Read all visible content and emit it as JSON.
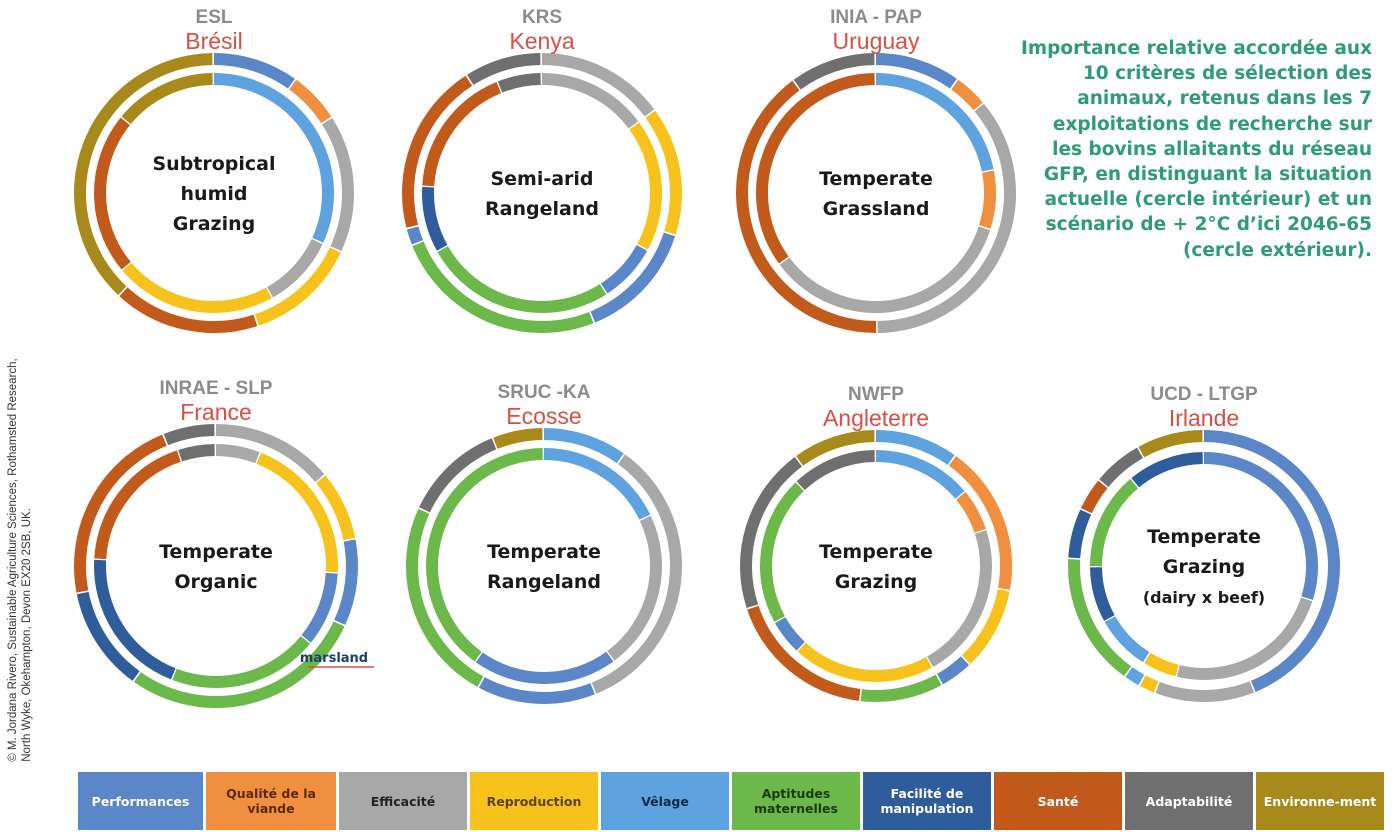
{
  "caption": "Importance relative accordée aux 10 critères de sélection des animaux, retenus dans les 7 exploitations de recherche sur les bovins allaitants du réseau GFP, en distinguant la situation actuelle (cercle intérieur) et un scénario de + 2°C d’ici 2046-65 (cercle extérieur).",
  "credit": {
    "line1": "© M. Jordana Rivero, Sustainable Agriculture Sciences, Rothamsted Research,",
    "line2": "North Wyke, Okehampton, Devon EX20 2SB, UK."
  },
  "colors": {
    "title_gray": "#8c8c8c",
    "country_red": "#d94f45",
    "caption_green": "#2e9b7a"
  },
  "legend": [
    {
      "key": "performances",
      "label": "Performances",
      "color": "#5b86c7",
      "text_color": "#ffffff",
      "width": 125
    },
    {
      "key": "qualite",
      "label": "Qualité de la viande",
      "color": "#ef8f3f",
      "text_color": "#5a2a06",
      "width": 130
    },
    {
      "key": "efficacite",
      "label": "Efficacité",
      "color": "#a8a8a8",
      "text_color": "#222222",
      "width": 128
    },
    {
      "key": "reproduction",
      "label": "Reproduction",
      "color": "#f7c21b",
      "text_color": "#5a4300",
      "width": 128
    },
    {
      "key": "velage",
      "label": "Vêlage",
      "color": "#5ea3e0",
      "text_color": "#0e2b47",
      "width": 128
    },
    {
      "key": "aptitudes",
      "label": "Aptitudes maternelles",
      "color": "#6cb84a",
      "text_color": "#1c3a0d",
      "width": 128
    },
    {
      "key": "facilite",
      "label": "Facilité de manipulation",
      "color": "#2f5d9c",
      "text_color": "#ffffff",
      "width": 128
    },
    {
      "key": "sante",
      "label": "Santé",
      "color": "#c25a1c",
      "text_color": "#ffffff",
      "width": 128
    },
    {
      "key": "adaptabilite",
      "label": "Adaptabilité",
      "color": "#6f6f6f",
      "text_color": "#ffffff",
      "width": 128
    },
    {
      "key": "environnement",
      "label": "Environne-ment",
      "color": "#a88a1c",
      "text_color": "#ffffff",
      "width": 128
    }
  ],
  "chart_data": [
    {
      "type": "donut",
      "org": "ESL",
      "country": "Brésil",
      "center_label": [
        "Subtropical",
        "humid",
        "Grazing"
      ],
      "outer": [
        [
          "performances",
          10
        ],
        [
          "qualite",
          6
        ],
        [
          "efficacite",
          16
        ],
        [
          "reproduction",
          13
        ],
        [
          "sante",
          17
        ],
        [
          "environnement",
          38
        ]
      ],
      "inner": [
        [
          "velage",
          32
        ],
        [
          "efficacite",
          10
        ],
        [
          "reproduction",
          22
        ],
        [
          "sante",
          22
        ],
        [
          "environnement",
          14
        ]
      ]
    },
    {
      "type": "donut",
      "org": "KRS",
      "country": "Kenya",
      "center_label": [
        "Semi-arid",
        "Rangeland"
      ],
      "outer": [
        [
          "efficacite",
          15
        ],
        [
          "reproduction",
          15
        ],
        [
          "performances",
          14
        ],
        [
          "aptitudes",
          25
        ],
        [
          "performances",
          2
        ],
        [
          "sante",
          20
        ],
        [
          "adaptabilite",
          9
        ]
      ],
      "inner": [
        [
          "efficacite",
          15
        ],
        [
          "reproduction",
          18
        ],
        [
          "performances",
          8
        ],
        [
          "aptitudes",
          26
        ],
        [
          "facilite",
          9
        ],
        [
          "sante",
          18
        ],
        [
          "adaptabilite",
          6
        ]
      ]
    },
    {
      "type": "donut",
      "org": "INIA - PAP",
      "country": "Uruguay",
      "center_label": [
        "Temperate",
        "Grassland"
      ],
      "outer": [
        [
          "performances",
          10
        ],
        [
          "qualite",
          4
        ],
        [
          "efficacite",
          36
        ],
        [
          "sante",
          40
        ],
        [
          "adaptabilite",
          10
        ]
      ],
      "inner": [
        [
          "velage",
          22
        ],
        [
          "qualite",
          8
        ],
        [
          "efficacite",
          35
        ],
        [
          "sante",
          35
        ]
      ]
    },
    {
      "type": "donut",
      "org": "INRAE - SLP",
      "country": "France",
      "center_label": [
        "Temperate",
        "Organic"
      ],
      "outer": [
        [
          "efficacite",
          14
        ],
        [
          "reproduction",
          8
        ],
        [
          "performances",
          10
        ],
        [
          "aptitudes",
          28
        ],
        [
          "facilite",
          12
        ],
        [
          "sante",
          22
        ],
        [
          "adaptabilite",
          6
        ]
      ],
      "inner": [
        [
          "efficacite",
          6
        ],
        [
          "reproduction",
          20
        ],
        [
          "performances",
          10
        ],
        [
          "aptitudes",
          20
        ],
        [
          "facilite",
          20
        ],
        [
          "sante",
          19
        ],
        [
          "adaptabilite",
          5
        ]
      ],
      "annotation": "marsland"
    },
    {
      "type": "donut",
      "org": "SRUC -KA",
      "country": "Ecosse",
      "center_label": [
        "Temperate",
        "Rangeland"
      ],
      "outer": [
        [
          "velage",
          10
        ],
        [
          "efficacite",
          34
        ],
        [
          "performances",
          14
        ],
        [
          "aptitudes",
          24
        ],
        [
          "adaptabilite",
          12
        ],
        [
          "environnement",
          6
        ]
      ],
      "inner": [
        [
          "velage",
          18
        ],
        [
          "efficacite",
          22
        ],
        [
          "performances",
          20
        ],
        [
          "aptitudes",
          40
        ]
      ]
    },
    {
      "type": "donut",
      "org": "NWFP",
      "country": "Angleterre",
      "center_label": [
        "Temperate",
        "Grazing"
      ],
      "outer": [
        [
          "velage",
          10
        ],
        [
          "qualite",
          18
        ],
        [
          "reproduction",
          10
        ],
        [
          "performances",
          4
        ],
        [
          "aptitudes",
          10
        ],
        [
          "sante",
          18
        ],
        [
          "adaptabilite",
          20
        ],
        [
          "environnement",
          10
        ]
      ],
      "inner": [
        [
          "velage",
          14
        ],
        [
          "qualite",
          6
        ],
        [
          "efficacite",
          22
        ],
        [
          "reproduction",
          20
        ],
        [
          "performances",
          5
        ],
        [
          "aptitudes",
          21
        ],
        [
          "adaptabilite",
          12
        ]
      ]
    },
    {
      "type": "donut",
      "org": "UCD - LTGP",
      "country": "Irlande",
      "center_label": [
        "Temperate",
        "Grazing",
        "(dairy x beef)"
      ],
      "outer": [
        [
          "performances",
          44
        ],
        [
          "efficacite",
          12
        ],
        [
          "reproduction",
          2
        ],
        [
          "velage",
          2
        ],
        [
          "aptitudes",
          16
        ],
        [
          "facilite",
          6
        ],
        [
          "sante",
          4
        ],
        [
          "adaptabilite",
          6
        ],
        [
          "environnement",
          8
        ]
      ],
      "inner": [
        [
          "performances",
          30
        ],
        [
          "efficacite",
          24
        ],
        [
          "reproduction",
          5
        ],
        [
          "velage",
          8
        ],
        [
          "facilite",
          8
        ],
        [
          "aptitudes",
          14
        ],
        [
          "facilite",
          11
        ]
      ]
    }
  ]
}
